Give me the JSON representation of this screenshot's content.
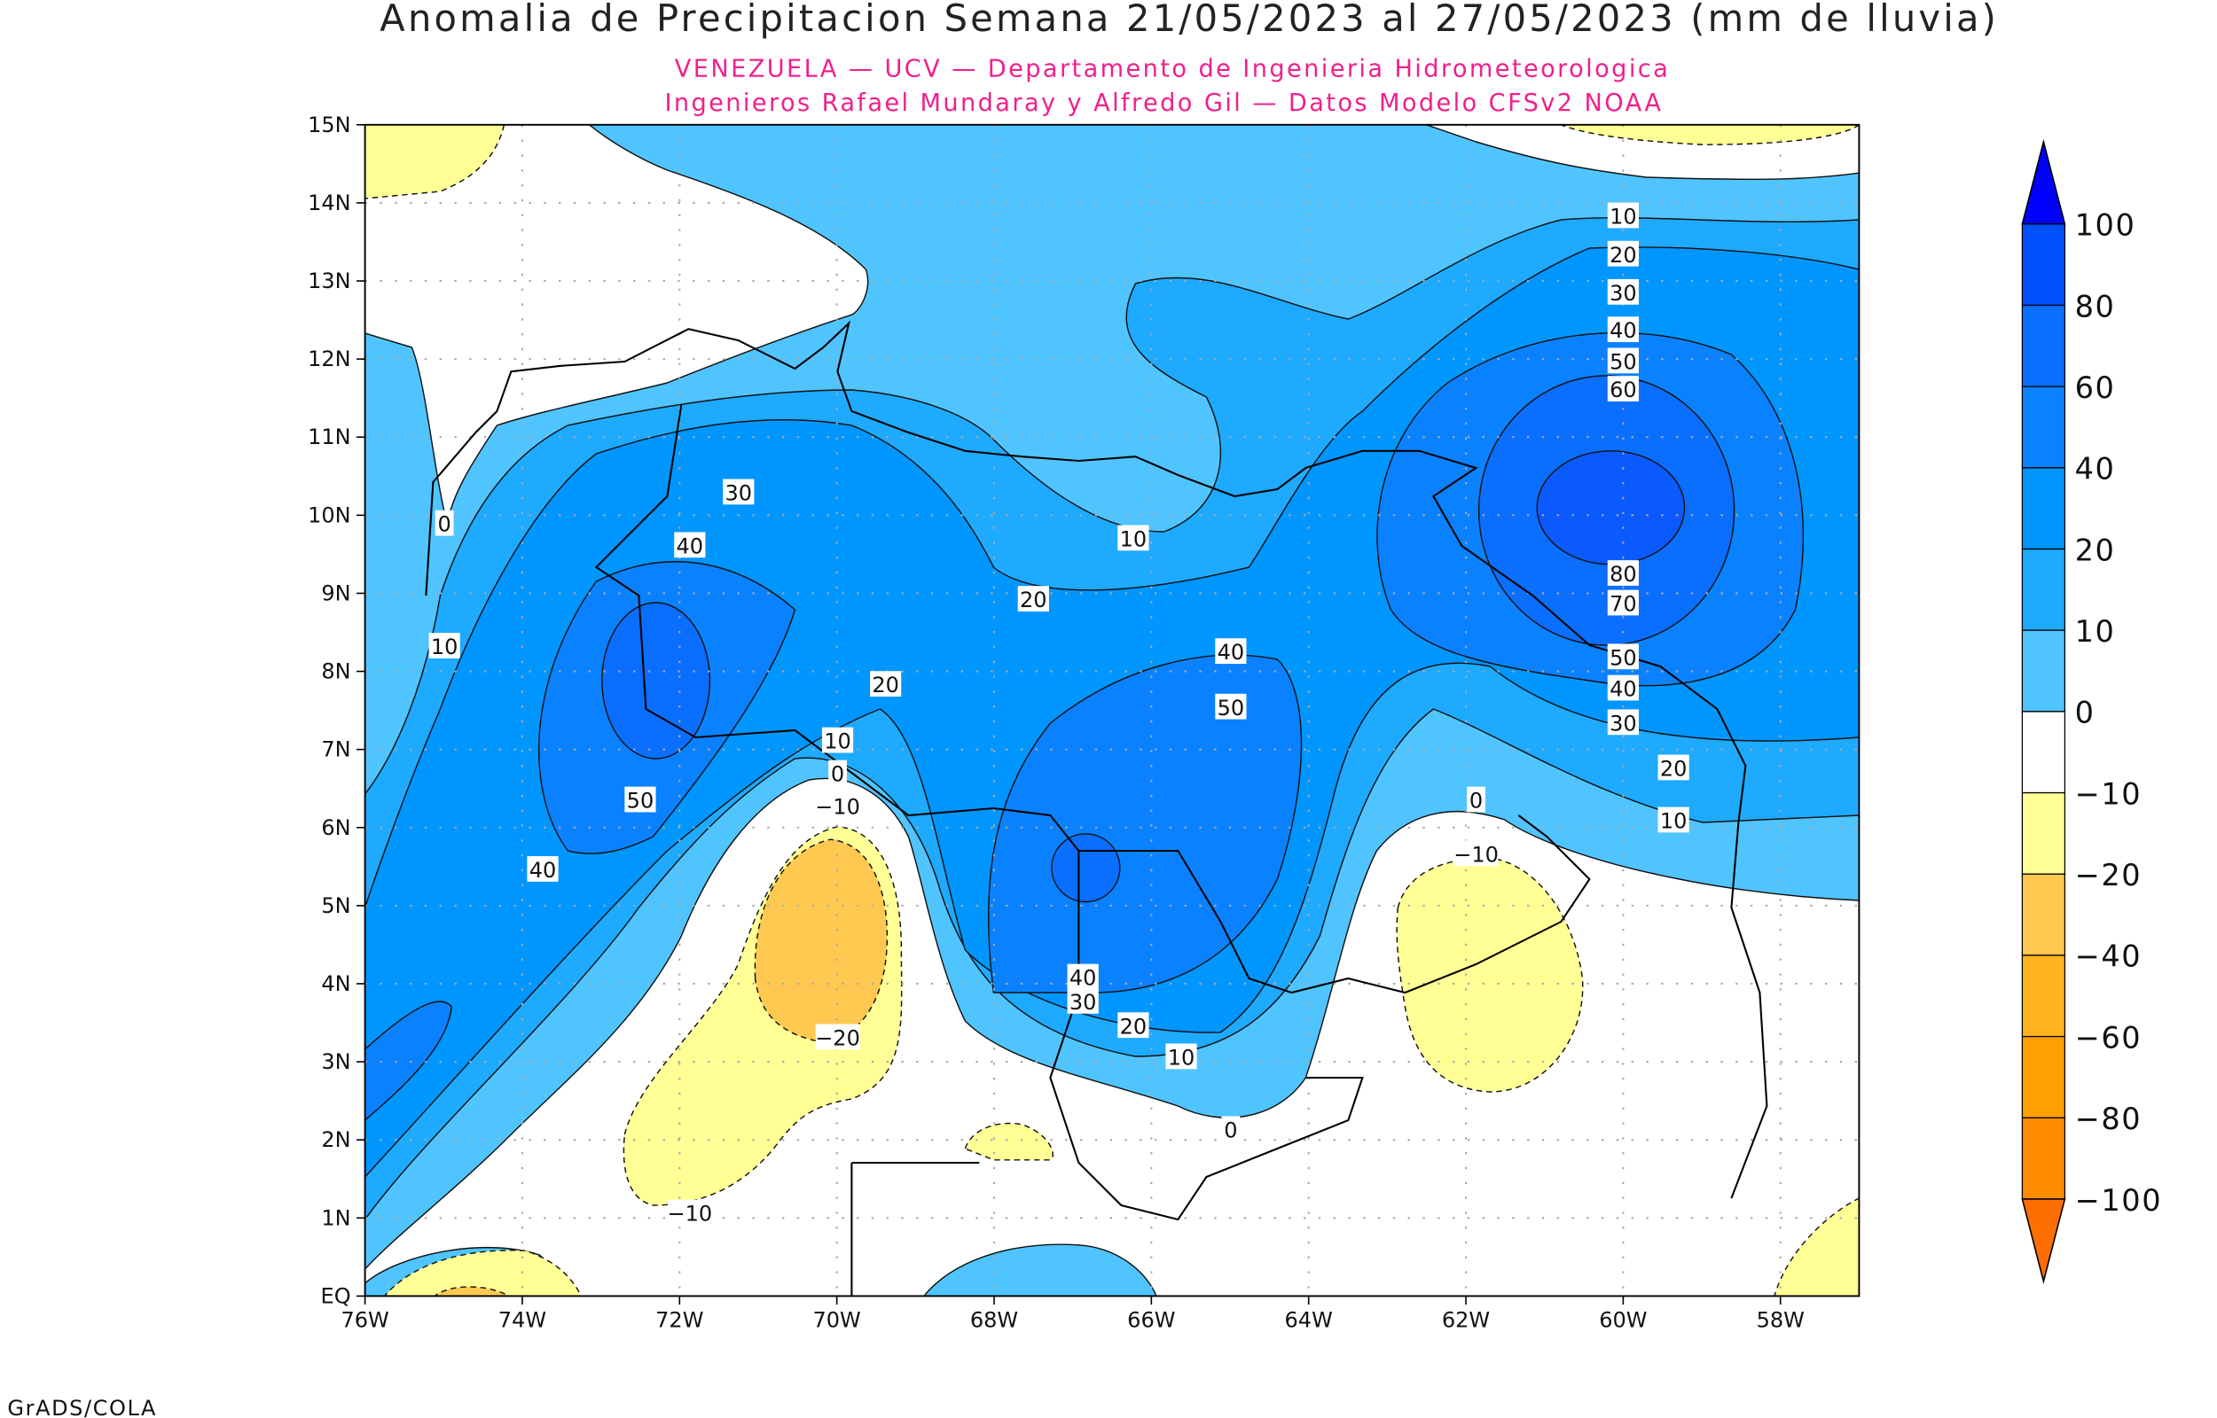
{
  "title": "Anomalia de Precipitacion Semana 21/05/2023 al 27/05/2023 (mm de lluvia)",
  "subtitle_1": "VENEZUELA — UCV — Departamento de Ingenieria Hidrometeorologica",
  "subtitle_2": "Ingenieros Rafael Mundaray y Alfredo Gil — Datos Modelo CFSv2 NOAA",
  "credit": "GrADS/COLA",
  "chart_data": {
    "type": "heatmap",
    "subtype": "filled contour map",
    "xlim": [
      -76,
      -57
    ],
    "ylim": [
      0,
      15
    ],
    "grid": true,
    "x_ticks": [
      {
        "value": -76,
        "label": "76W"
      },
      {
        "value": -74,
        "label": "74W"
      },
      {
        "value": -72,
        "label": "72W"
      },
      {
        "value": -70,
        "label": "70W"
      },
      {
        "value": -68,
        "label": "68W"
      },
      {
        "value": -66,
        "label": "66W"
      },
      {
        "value": -64,
        "label": "64W"
      },
      {
        "value": -62,
        "label": "62W"
      },
      {
        "value": -60,
        "label": "60W"
      },
      {
        "value": -58,
        "label": "58W"
      }
    ],
    "y_ticks": [
      {
        "value": 0,
        "label": "EQ"
      },
      {
        "value": 1,
        "label": "1N"
      },
      {
        "value": 2,
        "label": "2N"
      },
      {
        "value": 3,
        "label": "3N"
      },
      {
        "value": 4,
        "label": "4N"
      },
      {
        "value": 5,
        "label": "5N"
      },
      {
        "value": 6,
        "label": "6N"
      },
      {
        "value": 7,
        "label": "7N"
      },
      {
        "value": 8,
        "label": "8N"
      },
      {
        "value": 9,
        "label": "9N"
      },
      {
        "value": 10,
        "label": "10N"
      },
      {
        "value": 11,
        "label": "11N"
      },
      {
        "value": 12,
        "label": "12N"
      },
      {
        "value": 13,
        "label": "13N"
      },
      {
        "value": 14,
        "label": "14N"
      },
      {
        "value": 15,
        "label": "15N"
      }
    ],
    "colorbar": {
      "levels": [
        "100",
        "80",
        "60",
        "40",
        "20",
        "10",
        "0",
        "−10",
        "−20",
        "−40",
        "−60",
        "−80",
        "−100"
      ],
      "colors": [
        "#0050ff",
        "#0a6eff",
        "#0a82ff",
        "#0096ff",
        "#1eaaff",
        "#50c4ff",
        "#ffffff",
        "#ffff96",
        "#ffc850",
        "#ffb41e",
        "#ffa000",
        "#ff8c00"
      ],
      "over_color": "#0000ff",
      "under_color": "#ff6e00",
      "placement": "right"
    },
    "contour_labels": [
      {
        "text": "10",
        "lon": -60.0,
        "lat": 13.84
      },
      {
        "text": "20",
        "lon": -60.0,
        "lat": 13.35
      },
      {
        "text": "30",
        "lon": -60.0,
        "lat": 12.86
      },
      {
        "text": "40",
        "lon": -60.0,
        "lat": 12.38
      },
      {
        "text": "50",
        "lon": -60.0,
        "lat": 11.98
      },
      {
        "text": "60",
        "lon": -60.0,
        "lat": 11.62
      },
      {
        "text": "80",
        "lon": -60.0,
        "lat": 9.26
      },
      {
        "text": "70",
        "lon": -60.0,
        "lat": 8.88
      },
      {
        "text": "50",
        "lon": -60.0,
        "lat": 8.19
      },
      {
        "text": "40",
        "lon": -60.0,
        "lat": 7.79
      },
      {
        "text": "30",
        "lon": -60.0,
        "lat": 7.35
      },
      {
        "text": "20",
        "lon": -59.36,
        "lat": 6.77
      },
      {
        "text": "10",
        "lon": -59.36,
        "lat": 6.1
      },
      {
        "text": "0",
        "lon": -61.87,
        "lat": 6.36
      },
      {
        "text": "−10",
        "lon": -61.87,
        "lat": 5.67
      },
      {
        "text": "10",
        "lon": -66.23,
        "lat": 9.71
      },
      {
        "text": "20",
        "lon": -67.5,
        "lat": 8.93
      },
      {
        "text": "40",
        "lon": -64.99,
        "lat": 8.26
      },
      {
        "text": "50",
        "lon": -64.99,
        "lat": 7.55
      },
      {
        "text": "30",
        "lon": -71.25,
        "lat": 10.3
      },
      {
        "text": "40",
        "lon": -71.87,
        "lat": 9.62
      },
      {
        "text": "10",
        "lon": -74.99,
        "lat": 8.33
      },
      {
        "text": "0",
        "lon": -74.99,
        "lat": 9.9
      },
      {
        "text": "20",
        "lon": -69.38,
        "lat": 7.84
      },
      {
        "text": "10",
        "lon": -69.99,
        "lat": 7.12
      },
      {
        "text": "0",
        "lon": -69.99,
        "lat": 6.7
      },
      {
        "text": "−10",
        "lon": -69.99,
        "lat": 6.28
      },
      {
        "text": "50",
        "lon": -72.5,
        "lat": 6.36
      },
      {
        "text": "40",
        "lon": -73.74,
        "lat": 5.47
      },
      {
        "text": "40",
        "lon": -66.87,
        "lat": 4.09
      },
      {
        "text": "30",
        "lon": -66.87,
        "lat": 3.78
      },
      {
        "text": "20",
        "lon": -66.23,
        "lat": 3.47
      },
      {
        "text": "10",
        "lon": -65.62,
        "lat": 3.07
      },
      {
        "text": "0",
        "lon": -64.99,
        "lat": 2.14
      },
      {
        "text": "−20",
        "lon": -69.99,
        "lat": 3.32
      },
      {
        "text": "−10",
        "lon": -71.87,
        "lat": 1.07
      }
    ]
  }
}
